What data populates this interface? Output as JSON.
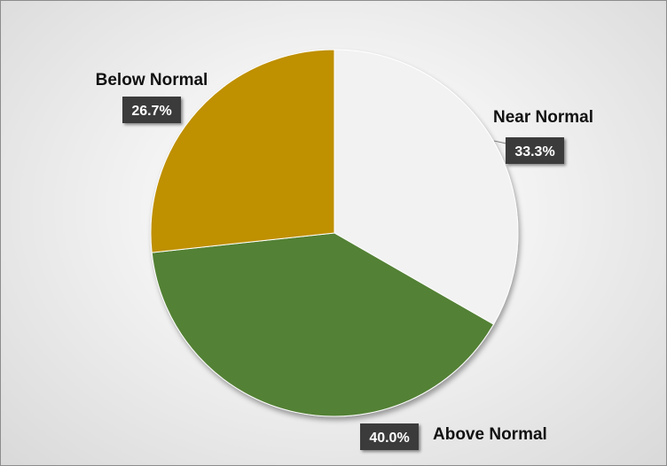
{
  "chart_data": {
    "type": "pie",
    "title": "",
    "legend": "none",
    "start_angle_deg": 0,
    "direction": "clockwise",
    "slices": [
      {
        "label": "Near Normal",
        "value": 33.3,
        "display": "33.3%",
        "color": "#f2f2f2"
      },
      {
        "label": "Above Normal",
        "value": 40.0,
        "display": "40.0%",
        "color": "#538135"
      },
      {
        "label": "Below Normal",
        "value": 26.7,
        "display": "26.7%",
        "color": "#bf9000"
      }
    ]
  },
  "colors": {
    "label_box": "#3a3a3a",
    "label_text": "#ffffff",
    "category_text": "#111111"
  }
}
